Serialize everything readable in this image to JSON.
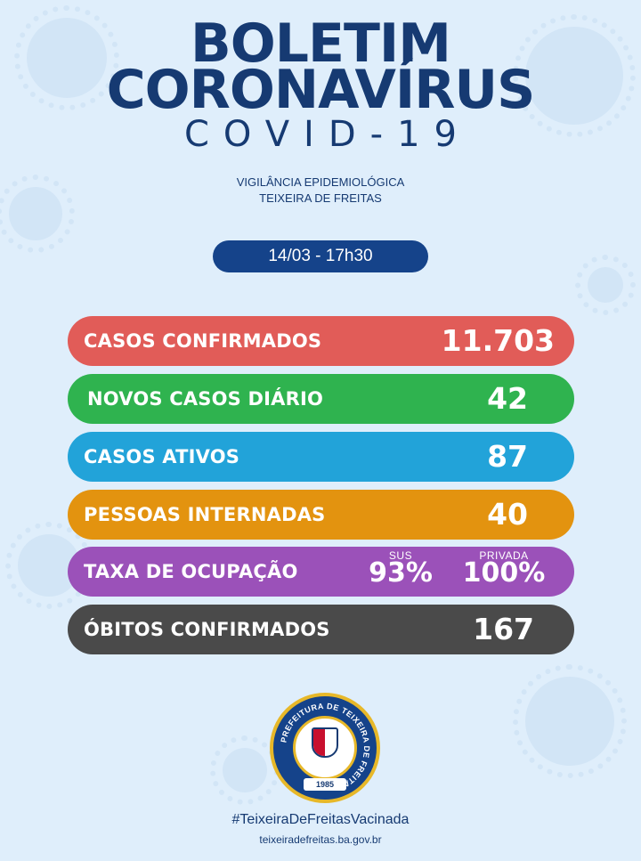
{
  "header": {
    "title_line1": "BOLETIM",
    "title_line2": "CORONAVÍRUS",
    "subtitle": "COVID-19",
    "agency_line1": "VIGILÂNCIA EPIDEMIOLÓGICA",
    "agency_line2": "TEIXEIRA DE FREITAS"
  },
  "date_time": "14/03 - 17h30",
  "stats": {
    "confirmed": {
      "label": "CASOS CONFIRMADOS",
      "value": "11.703",
      "color": "#e15c58"
    },
    "new_daily": {
      "label": "NOVOS CASOS DIÁRIO",
      "value": "42",
      "color": "#2fb34f"
    },
    "active": {
      "label": "CASOS ATIVOS",
      "value": "87",
      "color": "#22a3d9"
    },
    "hospitalized": {
      "label": "PESSOAS INTERNADAS",
      "value": "40",
      "color": "#e3930f"
    },
    "occupancy": {
      "label": "TAXA DE OCUPAÇÃO",
      "sus_label": "SUS",
      "sus_value": "93%",
      "private_label": "PRIVADA",
      "private_value": "100%",
      "color": "#9b51b9"
    },
    "deaths": {
      "label": "ÓBITOS CONFIRMADOS",
      "value": "167",
      "color": "#4a4a4a"
    }
  },
  "seal": {
    "ring_text": "PREFEITURA DE TEIXEIRA DE FREITAS",
    "year": "1985"
  },
  "footer": {
    "hashtag": "#TeixeiraDeFreitasVacinada",
    "website": "teixeiradefreitas.ba.gov.br"
  },
  "colors": {
    "background": "#dfeefb",
    "primary": "#163a72",
    "date_pill": "#15438a"
  }
}
